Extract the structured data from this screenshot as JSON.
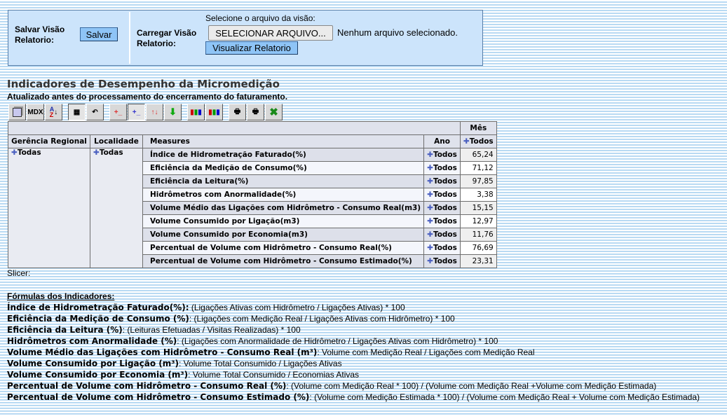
{
  "save_panel": {
    "label": "Salvar Visão Relatorio:",
    "button": "Salvar"
  },
  "load_panel": {
    "label": "Carregar Visão Relatorio:",
    "select_prompt": "Selecione o arquivo da visão:",
    "file_button": "SELECIONAR ARQUIVO...",
    "file_status": "Nenhum arquivo selecionado.",
    "view_button": "Visualizar Relatorio"
  },
  "report": {
    "title": "Indicadores de Desempenho da Micromedição",
    "subtitle": "Atualizado antes do processamento do encerramento do faturamento."
  },
  "toolbar": [
    {
      "icon": "cube-navigator-icon"
    },
    {
      "icon": "mdx-icon",
      "label": "MDX"
    },
    {
      "icon": "sort-az-icon"
    },
    {
      "icon": "hide-empty-icon"
    },
    {
      "icon": "swap-axes-icon"
    },
    {
      "icon": "drill-member-icon"
    },
    {
      "icon": "drill-position-icon"
    },
    {
      "icon": "drill-replace-icon"
    },
    {
      "icon": "drill-through-icon"
    },
    {
      "icon": "show-chart-icon"
    },
    {
      "icon": "chart-config-icon"
    },
    {
      "icon": "print-config-icon"
    },
    {
      "icon": "print-pdf-icon"
    },
    {
      "icon": "export-excel-icon"
    }
  ],
  "table": {
    "col_header_top": "Mês",
    "headers": {
      "gerencia": "Gerência Regional",
      "localidade": "Localidade",
      "measures": "Measures",
      "ano": "Ano",
      "mes": "Todos"
    },
    "gerencia_value": "Todas",
    "localidade_value": "Todas",
    "rows": [
      {
        "measure": "Índice de Hidrometração Faturado(%)",
        "ano": "Todos",
        "value": "65,24"
      },
      {
        "measure": "Eficiência da Medição de Consumo(%)",
        "ano": "Todos",
        "value": "71,12"
      },
      {
        "measure": "Eficiência da Leitura(%)",
        "ano": "Todos",
        "value": "97,85"
      },
      {
        "measure": "Hidrômetros com Anormalidade(%)",
        "ano": "Todos",
        "value": "3,38"
      },
      {
        "measure": "Volume Médio das Ligações com Hidrômetro - Consumo Real(m3)",
        "ano": "Todos",
        "value": "15,15"
      },
      {
        "measure": "Volume Consumido por Ligação(m3)",
        "ano": "Todos",
        "value": "12,97"
      },
      {
        "measure": "Volume Consumido por Economia(m3)",
        "ano": "Todos",
        "value": "11,76"
      },
      {
        "measure": "Percentual de Volume com Hidrômetro - Consumo Real(%)",
        "ano": "Todos",
        "value": "76,69"
      },
      {
        "measure": "Percentual de Volume com Hidrômetro - Consumo Estimado(%)",
        "ano": "Todos",
        "value": "23,31"
      }
    ]
  },
  "slicer": "Slicer:",
  "formulas": {
    "heading": "Fórmulas dos Indicadores:",
    "items": [
      {
        "name": "Índice de Hidrometração Faturado(%):",
        "formula": " (Ligações Ativas com Hidrômetro / Ligações Ativas) * 100"
      },
      {
        "name": "Eficiência da Medição de Consumo (%)",
        "formula": ": (Ligações com Medição Real / Ligações Ativas com Hidrômetro) * 100"
      },
      {
        "name": "Eficiência da Leitura (%)",
        "formula": ": (Leituras Efetuadas / Visitas Realizadas) * 100"
      },
      {
        "name": "Hidrômetros com Anormalidade (%)",
        "formula": ": (Ligações com Anormalidade de Hidrômetro / Ligações Ativas com Hidrômetro) * 100"
      },
      {
        "name": "Volume Médio das Ligações com Hidrômetro - Consumo Real (m³)",
        "formula": ": Volume com Medição Real / Ligações com Medição Real"
      },
      {
        "name": "Volume Consumido por Ligação (m³)",
        "formula": ": Volume Total Consumido / Ligações Ativas"
      },
      {
        "name": "Volume Consumido por Economia (m³)",
        "formula": ": Volume Total Consumido / Economias Ativas"
      },
      {
        "name": "Percentual de Volume com Hidrômetro - Consumo Real (%)",
        "formula": ": (Volume com Medição Real * 100) / (Volume com Medição Real +Volume com Medição Estimada)"
      },
      {
        "name": "Percentual de Volume com Hidrômetro - Consumo Estimado (%)",
        "formula": ": (Volume com Medição Estimada * 100) / (Volume com Medição Real + Volume com Medição Estimada)"
      }
    ]
  }
}
